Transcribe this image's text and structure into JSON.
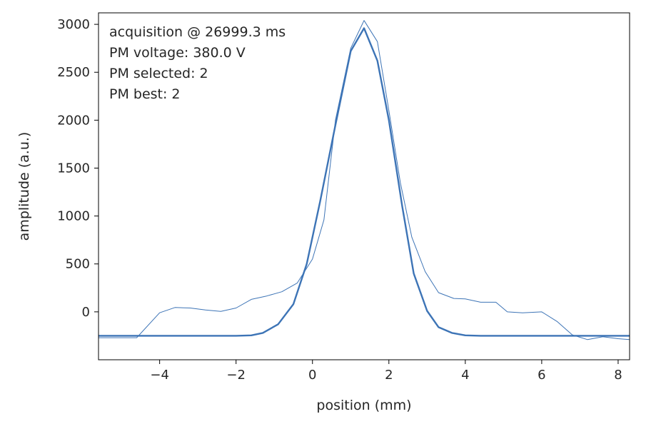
{
  "chart_data": {
    "type": "line",
    "xlabel": "position (mm)",
    "ylabel": "amplitude (a.u.)",
    "xlim": [
      -5.6,
      8.3
    ],
    "ylim": [
      -500,
      3120
    ],
    "xticks": [
      "−4",
      "−2",
      "0",
      "2",
      "4",
      "6",
      "8"
    ],
    "xtick_values": [
      -4,
      -2,
      0,
      2,
      4,
      6,
      8
    ],
    "yticks": [
      "0",
      "500",
      "1000",
      "1500",
      "2000",
      "2500",
      "3000"
    ],
    "ytick_values": [
      0,
      500,
      1000,
      1500,
      2000,
      2500,
      3000
    ],
    "grid": false,
    "legend": "none",
    "line_color": "#3d74b6",
    "annotations": [
      "acquisition @ 26999.3 ms",
      "PM voltage: 380.0 V",
      "PM selected: 2",
      "PM best: 2"
    ],
    "series": [
      {
        "style": "thin",
        "x": [
          -5.6,
          -4.6,
          -4.0,
          -3.6,
          -3.2,
          -2.8,
          -2.4,
          -2.0,
          -1.6,
          -1.2,
          -0.8,
          -0.4,
          0.0,
          0.3,
          0.6,
          1.0,
          1.35,
          1.7,
          2.0,
          2.3,
          2.6,
          2.95,
          3.3,
          3.7,
          4.0,
          4.4,
          4.8,
          5.1,
          5.5,
          6.0,
          6.4,
          6.8,
          7.2,
          7.6,
          8.0,
          8.3
        ],
        "y": [
          -270,
          -270,
          -10,
          45,
          40,
          20,
          5,
          40,
          130,
          165,
          210,
          300,
          550,
          960,
          2000,
          2750,
          3040,
          2820,
          2100,
          1350,
          780,
          420,
          200,
          140,
          135,
          100,
          100,
          0,
          -10,
          0,
          -100,
          -240,
          -290,
          -260,
          -280,
          -290
        ]
      },
      {
        "style": "thick",
        "x": [
          -5.6,
          -2.0,
          -1.6,
          -1.3,
          -0.9,
          -0.5,
          -0.15,
          0.2,
          0.6,
          1.0,
          1.35,
          1.7,
          2.0,
          2.35,
          2.65,
          3.0,
          3.3,
          3.65,
          4.0,
          4.4,
          5.0,
          8.3
        ],
        "y": [
          -250,
          -250,
          -245,
          -220,
          -130,
          80,
          500,
          1150,
          1950,
          2720,
          2960,
          2620,
          2000,
          1100,
          400,
          10,
          -160,
          -220,
          -245,
          -250,
          -250,
          -250
        ]
      }
    ]
  }
}
